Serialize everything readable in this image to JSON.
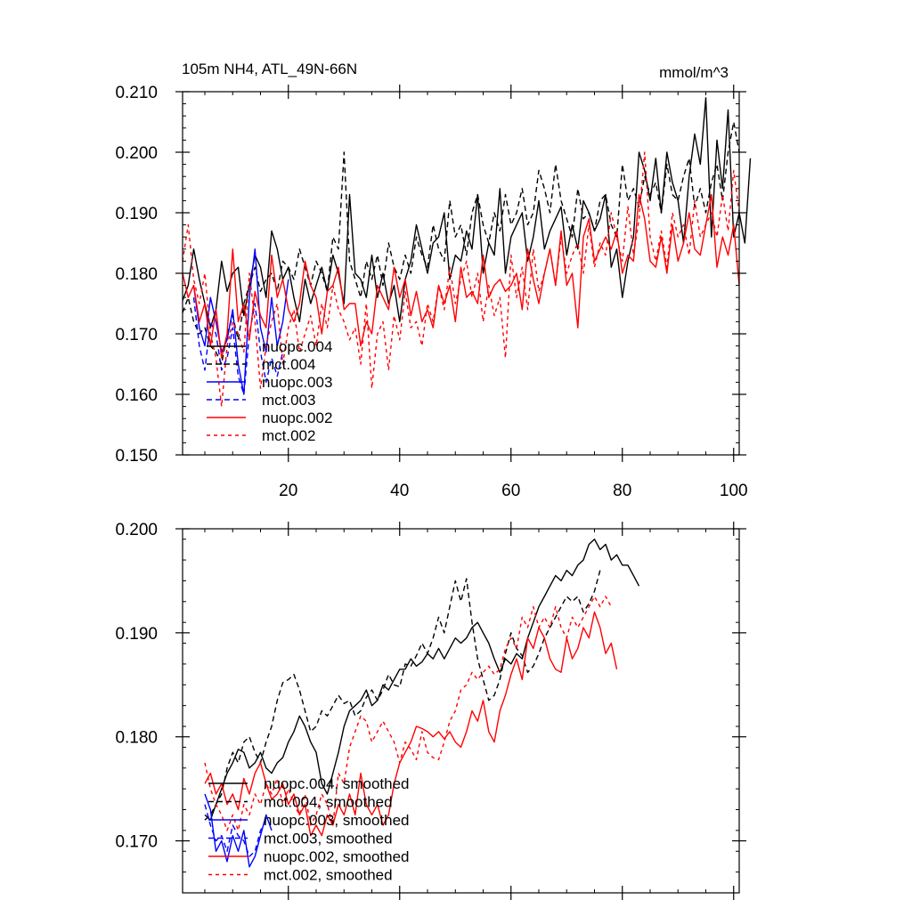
{
  "chart_data": [
    {
      "type": "line",
      "title": "105m NH4, ATL_49N-66N",
      "units": "mmol/m^3",
      "xlabel": "",
      "ylabel": "",
      "xlim": [
        1,
        101
      ],
      "ylim": [
        0.15,
        0.21
      ],
      "xticks": [
        20,
        40,
        60,
        80,
        100
      ],
      "xtick_labels": [
        "20",
        "40",
        "60",
        "80",
        "100"
      ],
      "yticks": [
        0.15,
        0.16,
        0.17,
        0.18,
        0.19,
        0.2,
        0.21
      ],
      "ytick_labels": [
        "0.150",
        "0.160",
        "0.170",
        "0.180",
        "0.190",
        "0.200",
        "0.210"
      ],
      "legend": [
        "nuopc.004",
        "mct.004",
        "nuopc.003",
        "mct.003",
        "nuopc.002",
        "mct.002"
      ],
      "legend_position": "bottom-left",
      "series": [
        {
          "name": "nuopc.004",
          "color": "#000000",
          "dash": "solid",
          "x_start": 1,
          "values": [
            0.1755,
            0.178,
            0.184,
            0.179,
            0.175,
            0.171,
            0.174,
            0.182,
            0.177,
            0.18,
            0.181,
            0.173,
            0.178,
            0.183,
            0.181,
            0.176,
            0.187,
            0.184,
            0.179,
            0.181,
            0.176,
            0.172,
            0.179,
            0.175,
            0.178,
            0.181,
            0.177,
            0.183,
            0.18,
            0.175,
            0.193,
            0.18,
            0.179,
            0.176,
            0.183,
            0.176,
            0.18,
            0.175,
            0.178,
            0.172,
            0.179,
            0.182,
            0.188,
            0.184,
            0.18,
            0.185,
            0.186,
            0.19,
            0.179,
            0.183,
            0.182,
            0.187,
            0.184,
            0.193,
            0.18,
            0.185,
            0.183,
            0.194,
            0.18,
            0.186,
            0.188,
            0.19,
            0.182,
            0.186,
            0.192,
            0.184,
            0.187,
            0.189,
            0.191,
            0.183,
            0.188,
            0.184,
            0.192,
            0.19,
            0.187,
            0.189,
            0.193,
            0.181,
            0.184,
            0.176,
            0.182,
            0.186,
            0.2,
            0.197,
            0.192,
            0.199,
            0.19,
            0.2,
            0.195,
            0.192,
            0.185,
            0.196,
            0.203,
            0.198,
            0.209,
            0.186,
            0.202,
            0.194,
            0.207,
            0.186,
            0.19,
            0.185,
            0.199
          ]
        },
        {
          "name": "mct.004",
          "color": "#000000",
          "dash": "6,4",
          "x_start": 1,
          "values": [
            0.1735,
            0.176,
            0.172,
            0.17,
            0.171,
            0.168,
            0.167,
            0.165,
            0.17,
            0.173,
            0.169,
            0.175,
            0.178,
            0.181,
            0.177,
            0.179,
            0.18,
            0.177,
            0.182,
            0.181,
            0.179,
            0.184,
            0.181,
            0.178,
            0.182,
            0.18,
            0.177,
            0.186,
            0.184,
            0.2,
            0.182,
            0.179,
            0.176,
            0.182,
            0.179,
            0.183,
            0.178,
            0.185,
            0.181,
            0.179,
            0.183,
            0.18,
            0.186,
            0.183,
            0.181,
            0.188,
            0.184,
            0.182,
            0.192,
            0.186,
            0.188,
            0.183,
            0.19,
            0.193,
            0.188,
            0.185,
            0.19,
            0.187,
            0.193,
            0.188,
            0.19,
            0.194,
            0.188,
            0.19,
            0.197,
            0.194,
            0.19,
            0.198,
            0.192,
            0.189,
            0.186,
            0.194,
            0.189,
            0.19,
            0.187,
            0.192,
            0.193,
            0.188,
            0.186,
            0.198,
            0.192,
            0.194,
            0.191,
            0.196,
            0.193,
            0.195,
            0.19,
            0.198,
            0.193,
            0.192,
            0.196,
            0.199,
            0.191,
            0.194,
            0.19,
            0.195,
            0.198,
            0.192,
            0.2,
            0.205,
            0.2
          ]
        },
        {
          "name": "nuopc.003",
          "color": "#0000ff",
          "dash": "solid",
          "x_start": 3,
          "values": [
            0.178,
            0.171,
            0.168,
            0.176,
            0.172,
            0.167,
            0.169,
            0.174,
            0.165,
            0.16,
            0.176,
            0.184,
            0.171,
            0.167,
            0.176,
            0.168,
            0.172,
            0.179
          ]
        },
        {
          "name": "mct.003",
          "color": "#0000ff",
          "dash": "6,4",
          "x_start": 3,
          "values": [
            0.176,
            0.168,
            0.164,
            0.172,
            0.17,
            0.164,
            0.166,
            0.171,
            0.163,
            0.16,
            0.17,
            0.175,
            0.167,
            0.162,
            0.166,
            0.163,
            0.167
          ]
        },
        {
          "name": "nuopc.002",
          "color": "#ff0000",
          "dash": "solid",
          "x_start": 1,
          "values": [
            0.18,
            0.176,
            0.178,
            0.172,
            0.175,
            0.168,
            0.174,
            0.166,
            0.17,
            0.184,
            0.172,
            0.175,
            0.169,
            0.177,
            0.173,
            0.171,
            0.183,
            0.176,
            0.179,
            0.174,
            0.172,
            0.175,
            0.182,
            0.178,
            0.176,
            0.17,
            0.177,
            0.178,
            0.181,
            0.174,
            0.175,
            0.175,
            0.168,
            0.172,
            0.17,
            0.178,
            0.176,
            0.174,
            0.181,
            0.176,
            0.179,
            0.173,
            0.177,
            0.172,
            0.174,
            0.171,
            0.178,
            0.175,
            0.178,
            0.172,
            0.181,
            0.176,
            0.177,
            0.175,
            0.183,
            0.176,
            0.178,
            0.179,
            0.177,
            0.178,
            0.18,
            0.174,
            0.184,
            0.179,
            0.175,
            0.18,
            0.184,
            0.178,
            0.187,
            0.178,
            0.18,
            0.171,
            0.186,
            0.189,
            0.182,
            0.184,
            0.186,
            0.184,
            0.187,
            0.18,
            0.183,
            0.182,
            0.193,
            0.189,
            0.182,
            0.181,
            0.186,
            0.18,
            0.188,
            0.182,
            0.185,
            0.19,
            0.184,
            0.183,
            0.188,
            0.193,
            0.181,
            0.186,
            0.183,
            0.188,
            0.178
          ]
        },
        {
          "name": "mct.002",
          "color": "#ff0000",
          "dash": "4,4",
          "x_start": 1,
          "values": [
            0.182,
            0.188,
            0.179,
            0.175,
            0.18,
            0.17,
            0.166,
            0.158,
            0.168,
            0.172,
            0.17,
            0.167,
            0.18,
            0.172,
            0.161,
            0.168,
            0.172,
            0.175,
            0.165,
            0.171,
            0.174,
            0.167,
            0.17,
            0.173,
            0.168,
            0.175,
            0.171,
            0.178,
            0.174,
            0.172,
            0.169,
            0.171,
            0.165,
            0.175,
            0.161,
            0.17,
            0.172,
            0.164,
            0.173,
            0.169,
            0.177,
            0.171,
            0.172,
            0.168,
            0.175,
            0.172,
            0.178,
            0.174,
            0.181,
            0.175,
            0.179,
            0.182,
            0.176,
            0.18,
            0.172,
            0.178,
            0.173,
            0.176,
            0.166,
            0.183,
            0.176,
            0.181,
            0.174,
            0.184,
            0.177,
            0.18,
            0.184,
            0.178,
            0.186,
            0.18,
            0.183,
            0.185,
            0.18,
            0.188,
            0.181,
            0.185,
            0.183,
            0.19,
            0.186,
            0.182,
            0.191,
            0.183,
            0.189,
            0.2,
            0.186,
            0.182,
            0.187,
            0.181,
            0.19,
            0.186,
            0.188,
            0.183,
            0.192,
            0.186,
            0.188,
            0.19,
            0.186,
            0.193,
            0.187,
            0.197,
            0.19
          ]
        }
      ]
    },
    {
      "type": "line",
      "title": "",
      "xlabel": "",
      "ylabel": "",
      "xlim": [
        1,
        101
      ],
      "ylim": [
        0.165,
        0.2
      ],
      "xticks": [
        20,
        40,
        60,
        80,
        100
      ],
      "xtick_labels": [],
      "yticks": [
        0.17,
        0.18,
        0.19,
        0.2
      ],
      "ytick_labels": [
        "0.170",
        "0.180",
        "0.190",
        "0.200"
      ],
      "legend": [
        "nuopc.004, smoothed",
        "mct.004, smoothed",
        "nuopc.003, smoothed",
        "mct.003, smoothed",
        "nuopc.002, smoothed",
        "mct.002, smoothed"
      ],
      "legend_position": "bottom-left",
      "series": [
        {
          "name": "nuopc.004, smoothed",
          "color": "#000000",
          "dash": "solid",
          "x_start": 5,
          "values": [
            0.1725,
            0.172,
            0.1735,
            0.175,
            0.1765,
            0.1775,
            0.1788,
            0.1785,
            0.177,
            0.1775,
            0.1785,
            0.177,
            0.1765,
            0.1775,
            0.178,
            0.1795,
            0.1805,
            0.182,
            0.181,
            0.1795,
            0.1785,
            0.1755,
            0.1745,
            0.1765,
            0.1785,
            0.181,
            0.1825,
            0.183,
            0.1835,
            0.1845,
            0.183,
            0.1835,
            0.185,
            0.1845,
            0.1855,
            0.1865,
            0.1865,
            0.1875,
            0.1868,
            0.1872,
            0.188,
            0.1875,
            0.1885,
            0.1875,
            0.1885,
            0.1895,
            0.189,
            0.1895,
            0.1905,
            0.191,
            0.19,
            0.189,
            0.1875,
            0.1862,
            0.1875,
            0.187,
            0.188,
            0.1875,
            0.1895,
            0.191,
            0.1925,
            0.1935,
            0.1945,
            0.1955,
            0.195,
            0.196,
            0.1955,
            0.1965,
            0.197,
            0.1985,
            0.199,
            0.198,
            0.1985,
            0.197,
            0.1975,
            0.1965,
            0.1965,
            0.1955,
            0.1945
          ]
        },
        {
          "name": "mct.004, smoothed",
          "color": "#000000",
          "dash": "6,4",
          "x_start": 5,
          "values": [
            0.172,
            0.1725,
            0.1735,
            0.1745,
            0.177,
            0.1785,
            0.1775,
            0.1795,
            0.18,
            0.1785,
            0.1775,
            0.1795,
            0.181,
            0.1835,
            0.1852,
            0.1855,
            0.186,
            0.1845,
            0.1825,
            0.1805,
            0.181,
            0.1825,
            0.182,
            0.183,
            0.184,
            0.1832,
            0.1835,
            0.182,
            0.1825,
            0.1838,
            0.1845,
            0.1835,
            0.1845,
            0.186,
            0.185,
            0.1848,
            0.187,
            0.1868,
            0.1878,
            0.189,
            0.188,
            0.1895,
            0.1915,
            0.19,
            0.1925,
            0.195,
            0.193,
            0.1952,
            0.191,
            0.1875,
            0.1855,
            0.1835,
            0.184,
            0.1855,
            0.188,
            0.19,
            0.1885,
            0.1878,
            0.1862,
            0.1868,
            0.188,
            0.1895,
            0.1905,
            0.1915,
            0.1925,
            0.1935,
            0.193,
            0.1935,
            0.192,
            0.1928,
            0.194,
            0.196
          ]
        },
        {
          "name": "nuopc.003, smoothed",
          "color": "#0000ff",
          "dash": "solid",
          "x_start": 5,
          "values": [
            0.1745,
            0.173,
            0.169,
            0.17,
            0.168,
            0.1705,
            0.169,
            0.171,
            0.1675,
            0.1685,
            0.1705,
            0.1725,
            0.171
          ]
        },
        {
          "name": "mct.003, smoothed",
          "color": "#0000ff",
          "dash": "6,4",
          "x_start": 5,
          "values": [
            0.1735,
            0.1715,
            0.17,
            0.1705,
            0.169,
            0.1715,
            0.1705,
            0.17,
            0.1685,
            0.169,
            0.171,
            0.172
          ]
        },
        {
          "name": "nuopc.002, smoothed",
          "color": "#ff0000",
          "dash": "solid",
          "x_start": 5,
          "values": [
            0.1755,
            0.1765,
            0.1745,
            0.1755,
            0.1735,
            0.1745,
            0.173,
            0.176,
            0.1745,
            0.1765,
            0.1775,
            0.1755,
            0.174,
            0.1745,
            0.1755,
            0.1735,
            0.1745,
            0.1725,
            0.1735,
            0.1705,
            0.1715,
            0.1705,
            0.1725,
            0.1715,
            0.1735,
            0.1725,
            0.1745,
            0.1725,
            0.1765,
            0.1735,
            0.1725,
            0.1735,
            0.1715,
            0.1725,
            0.1755,
            0.1775,
            0.1785,
            0.1795,
            0.181,
            0.1808,
            0.1805,
            0.18,
            0.1805,
            0.1798,
            0.1805,
            0.1795,
            0.179,
            0.1805,
            0.1825,
            0.1815,
            0.1835,
            0.1805,
            0.1795,
            0.1825,
            0.184,
            0.186,
            0.1875,
            0.1855,
            0.1895,
            0.1885,
            0.1905,
            0.1895,
            0.1875,
            0.1865,
            0.1862,
            0.1895,
            0.1875,
            0.1885,
            0.1905,
            0.1895,
            0.192,
            0.1905,
            0.188,
            0.189,
            0.1865
          ]
        },
        {
          "name": "mct.002, smoothed",
          "color": "#ff0000",
          "dash": "4,4",
          "x_start": 5,
          "values": [
            0.1775,
            0.175,
            0.1735,
            0.1725,
            0.171,
            0.1725,
            0.171,
            0.1735,
            0.1725,
            0.1745,
            0.1735,
            0.1755,
            0.1745,
            0.176,
            0.1735,
            0.175,
            0.1735,
            0.1725,
            0.1745,
            0.1715,
            0.1725,
            0.1745,
            0.1735,
            0.1715,
            0.1765,
            0.1755,
            0.179,
            0.1805,
            0.182,
            0.1815,
            0.1795,
            0.1805,
            0.1815,
            0.1805,
            0.1795,
            0.1775,
            0.1795,
            0.1788,
            0.1778,
            0.1805,
            0.1785,
            0.178,
            0.1778,
            0.1795,
            0.1815,
            0.1825,
            0.1845,
            0.185,
            0.1862,
            0.1855,
            0.1862,
            0.1868,
            0.186,
            0.1865,
            0.1885,
            0.1895,
            0.1885,
            0.1915,
            0.1905,
            0.1925,
            0.1905,
            0.1915,
            0.1905,
            0.1925,
            0.1905,
            0.1895,
            0.1915,
            0.1905,
            0.1915,
            0.1925,
            0.1935,
            0.1925,
            0.1935,
            0.1925
          ]
        }
      ]
    }
  ]
}
